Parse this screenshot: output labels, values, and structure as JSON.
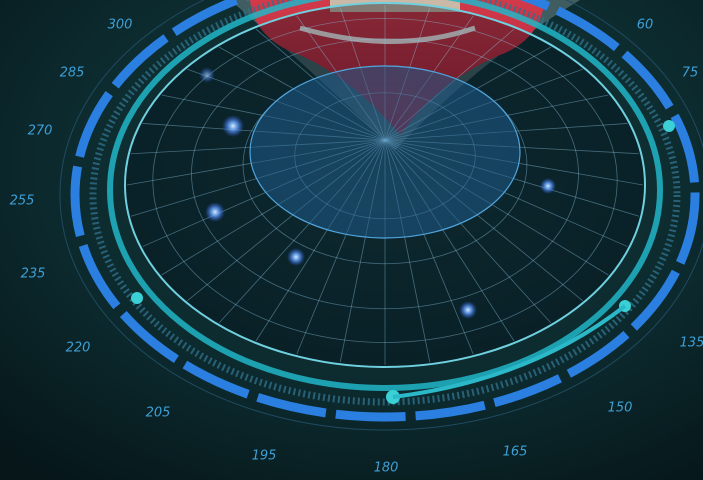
{
  "compass": {
    "labels": [
      "300",
      "60",
      "285",
      "75",
      "270",
      "255",
      "235",
      "220",
      "205",
      "195",
      "180",
      "165",
      "150",
      "135"
    ]
  }
}
